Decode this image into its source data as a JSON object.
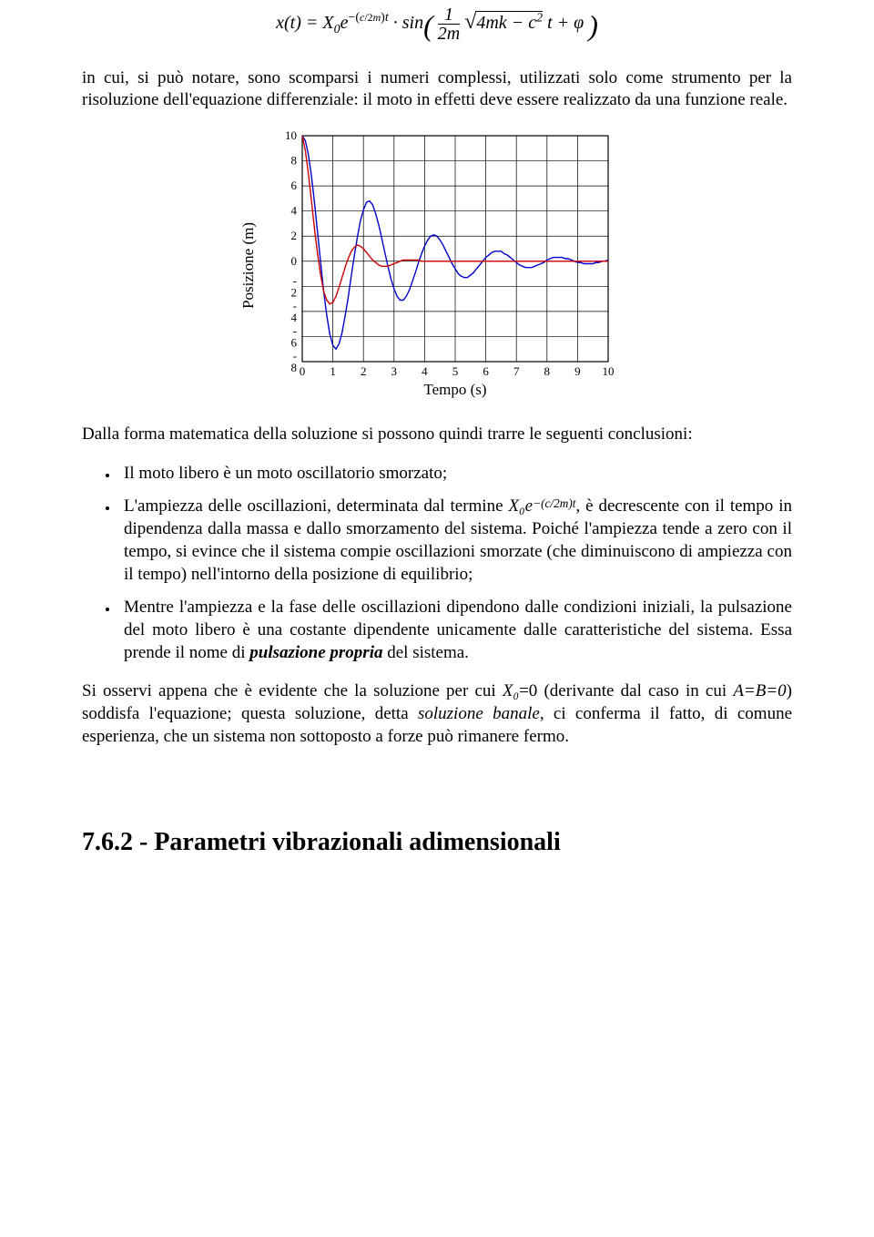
{
  "equation_main": "x(t) = X₀ e⁻⁽ᶜ⁄₂ᵐ⁾ᵗ · sin( (1 / 2m) √(4mk − c²) t + φ )",
  "para1": "in cui, si può notare, sono scomparsi i numeri complessi, utilizzati solo come strumento per la risoluzione dell'equazione differenziale: il moto in effetti deve essere realizzato da una funzione reale.",
  "chart": {
    "type": "line",
    "xlabel": "Tempo (s)",
    "ylabel": "Posizione (m)",
    "xlim": [
      0,
      10
    ],
    "ylim": [
      -8,
      10
    ],
    "xticks": [
      0,
      1,
      2,
      3,
      4,
      5,
      6,
      7,
      8,
      9,
      10
    ],
    "yticks": [
      -8,
      -6,
      -4,
      -2,
      0,
      2,
      4,
      6,
      8,
      10
    ],
    "background_color": "#ffffff",
    "grid_color": "#000000",
    "axis_font_size": 13,
    "label_font_size": 17,
    "line_width": 1.4,
    "series": [
      {
        "name": "blue",
        "color": "#0000cc",
        "points": [
          [
            0,
            10
          ],
          [
            0.1,
            9.6
          ],
          [
            0.2,
            8.5
          ],
          [
            0.3,
            6.8
          ],
          [
            0.4,
            4.7
          ],
          [
            0.5,
            2.3
          ],
          [
            0.6,
            -0.1
          ],
          [
            0.7,
            -2.4
          ],
          [
            0.8,
            -4.3
          ],
          [
            0.9,
            -5.8
          ],
          [
            1.0,
            -6.7
          ],
          [
            1.1,
            -7.0
          ],
          [
            1.2,
            -6.6
          ],
          [
            1.3,
            -5.7
          ],
          [
            1.4,
            -4.4
          ],
          [
            1.5,
            -2.9
          ],
          [
            1.6,
            -1.2
          ],
          [
            1.7,
            0.4
          ],
          [
            1.8,
            1.9
          ],
          [
            1.9,
            3.2
          ],
          [
            2.0,
            4.1
          ],
          [
            2.1,
            4.7
          ],
          [
            2.2,
            4.8
          ],
          [
            2.3,
            4.5
          ],
          [
            2.4,
            3.8
          ],
          [
            2.5,
            2.9
          ],
          [
            2.6,
            1.8
          ],
          [
            2.7,
            0.7
          ],
          [
            2.8,
            -0.4
          ],
          [
            2.9,
            -1.4
          ],
          [
            3.0,
            -2.2
          ],
          [
            3.1,
            -2.8
          ],
          [
            3.2,
            -3.1
          ],
          [
            3.3,
            -3.1
          ],
          [
            3.4,
            -2.8
          ],
          [
            3.5,
            -2.3
          ],
          [
            3.6,
            -1.6
          ],
          [
            3.7,
            -0.9
          ],
          [
            3.8,
            -0.1
          ],
          [
            3.9,
            0.6
          ],
          [
            4.0,
            1.2
          ],
          [
            4.1,
            1.7
          ],
          [
            4.2,
            2.0
          ],
          [
            4.3,
            2.1
          ],
          [
            4.4,
            2.0
          ],
          [
            4.5,
            1.7
          ],
          [
            4.6,
            1.3
          ],
          [
            4.7,
            0.8
          ],
          [
            4.8,
            0.3
          ],
          [
            4.9,
            -0.2
          ],
          [
            5.0,
            -0.6
          ],
          [
            5.1,
            -1.0
          ],
          [
            5.2,
            -1.2
          ],
          [
            5.3,
            -1.3
          ],
          [
            5.4,
            -1.3
          ],
          [
            5.5,
            -1.1
          ],
          [
            5.6,
            -0.9
          ],
          [
            5.7,
            -0.6
          ],
          [
            5.8,
            -0.3
          ],
          [
            5.9,
            0.0
          ],
          [
            6.0,
            0.3
          ],
          [
            6.1,
            0.5
          ],
          [
            6.2,
            0.7
          ],
          [
            6.3,
            0.8
          ],
          [
            6.4,
            0.8
          ],
          [
            6.5,
            0.8
          ],
          [
            6.6,
            0.6
          ],
          [
            6.7,
            0.5
          ],
          [
            6.8,
            0.3
          ],
          [
            6.9,
            0.1
          ],
          [
            7.0,
            -0.1
          ],
          [
            7.1,
            -0.3
          ],
          [
            7.2,
            -0.4
          ],
          [
            7.3,
            -0.5
          ],
          [
            7.4,
            -0.5
          ],
          [
            7.5,
            -0.5
          ],
          [
            7.6,
            -0.4
          ],
          [
            7.7,
            -0.3
          ],
          [
            7.8,
            -0.2
          ],
          [
            7.9,
            -0.1
          ],
          [
            8.0,
            0.1
          ],
          [
            8.1,
            0.2
          ],
          [
            8.2,
            0.3
          ],
          [
            8.3,
            0.3
          ],
          [
            8.4,
            0.3
          ],
          [
            8.5,
            0.3
          ],
          [
            8.6,
            0.2
          ],
          [
            8.7,
            0.2
          ],
          [
            8.8,
            0.1
          ],
          [
            8.9,
            0.0
          ],
          [
            9.0,
            -0.1
          ],
          [
            9.1,
            -0.1
          ],
          [
            9.2,
            -0.2
          ],
          [
            9.3,
            -0.2
          ],
          [
            9.4,
            -0.2
          ],
          [
            9.5,
            -0.2
          ],
          [
            9.6,
            -0.1
          ],
          [
            9.7,
            -0.1
          ],
          [
            9.8,
            0.0
          ],
          [
            9.9,
            0.0
          ],
          [
            10.0,
            0.1
          ]
        ]
      },
      {
        "name": "red",
        "color": "#cc0000",
        "points": [
          [
            0,
            10
          ],
          [
            0.1,
            8.8
          ],
          [
            0.2,
            7.0
          ],
          [
            0.3,
            4.8
          ],
          [
            0.4,
            2.6
          ],
          [
            0.5,
            0.6
          ],
          [
            0.6,
            -1.1
          ],
          [
            0.7,
            -2.4
          ],
          [
            0.8,
            -3.1
          ],
          [
            0.9,
            -3.4
          ],
          [
            1.0,
            -3.3
          ],
          [
            1.1,
            -2.8
          ],
          [
            1.2,
            -2.1
          ],
          [
            1.3,
            -1.3
          ],
          [
            1.4,
            -0.5
          ],
          [
            1.5,
            0.2
          ],
          [
            1.6,
            0.8
          ],
          [
            1.7,
            1.1
          ],
          [
            1.8,
            1.3
          ],
          [
            1.9,
            1.2
          ],
          [
            2.0,
            1.0
          ],
          [
            2.1,
            0.7
          ],
          [
            2.2,
            0.4
          ],
          [
            2.3,
            0.1
          ],
          [
            2.4,
            -0.1
          ],
          [
            2.5,
            -0.3
          ],
          [
            2.6,
            -0.4
          ],
          [
            2.7,
            -0.4
          ],
          [
            2.8,
            -0.4
          ],
          [
            2.9,
            -0.3
          ],
          [
            3.0,
            -0.2
          ],
          [
            3.1,
            -0.1
          ],
          [
            3.2,
            0.0
          ],
          [
            3.3,
            0.1
          ],
          [
            3.4,
            0.1
          ],
          [
            3.5,
            0.1
          ],
          [
            3.6,
            0.1
          ],
          [
            3.7,
            0.1
          ],
          [
            3.8,
            0.1
          ],
          [
            3.9,
            0.0
          ],
          [
            4.0,
            0.0
          ],
          [
            4.2,
            0.0
          ],
          [
            4.5,
            0.0
          ],
          [
            5.0,
            0.0
          ],
          [
            6.0,
            0.0
          ],
          [
            7.0,
            0.0
          ],
          [
            8.0,
            0.0
          ],
          [
            9.0,
            0.0
          ],
          [
            10.0,
            0.0
          ]
        ]
      }
    ]
  },
  "para2": "Dalla forma matematica della soluzione si possono quindi trarre le seguenti conclusioni:",
  "bullet1": "Il moto libero è un moto oscillatorio smorzato;",
  "bullet2_a": "L'ampiezza delle oscillazioni, determinata dal termine ",
  "bullet2_eq": "X₀e",
  "bullet2_exp": "−(c/2m)t",
  "bullet2_b": ",  è decrescente con il tempo in dipendenza dalla massa e dallo smorzamento del sistema. Poiché l'ampiezza tende a zero con il tempo, si evince che il sistema compie oscillazioni smorzate (che diminuiscono di ampiezza con il tempo) nell'intorno della posizione di equilibrio;",
  "bullet3": "Mentre l'ampiezza e la fase delle oscillazioni dipendono dalle condizioni iniziali, la pulsazione del moto libero è una costante dipendente unicamente dalle caratteristiche del sistema. Essa prende il nome di ",
  "bullet3_em": "pulsazione propria",
  "bullet3_c": " del sistema.",
  "para3_a": "Si osservi appena che è evidente che la soluzione per cui ",
  "para3_eq1": "X₀",
  "para3_b": "=0 (derivante dal caso in cui ",
  "para3_eq2": "A=B=0",
  "para3_c": ") soddisfa l'equazione; questa soluzione, detta ",
  "para3_em": "soluzione banale",
  "para3_d": ", ci conferma il fatto, di comune esperienza, che un sistema non sottoposto a forze può rimanere fermo.",
  "heading": "7.6.2 - Parametri vibrazionali adimensionali"
}
